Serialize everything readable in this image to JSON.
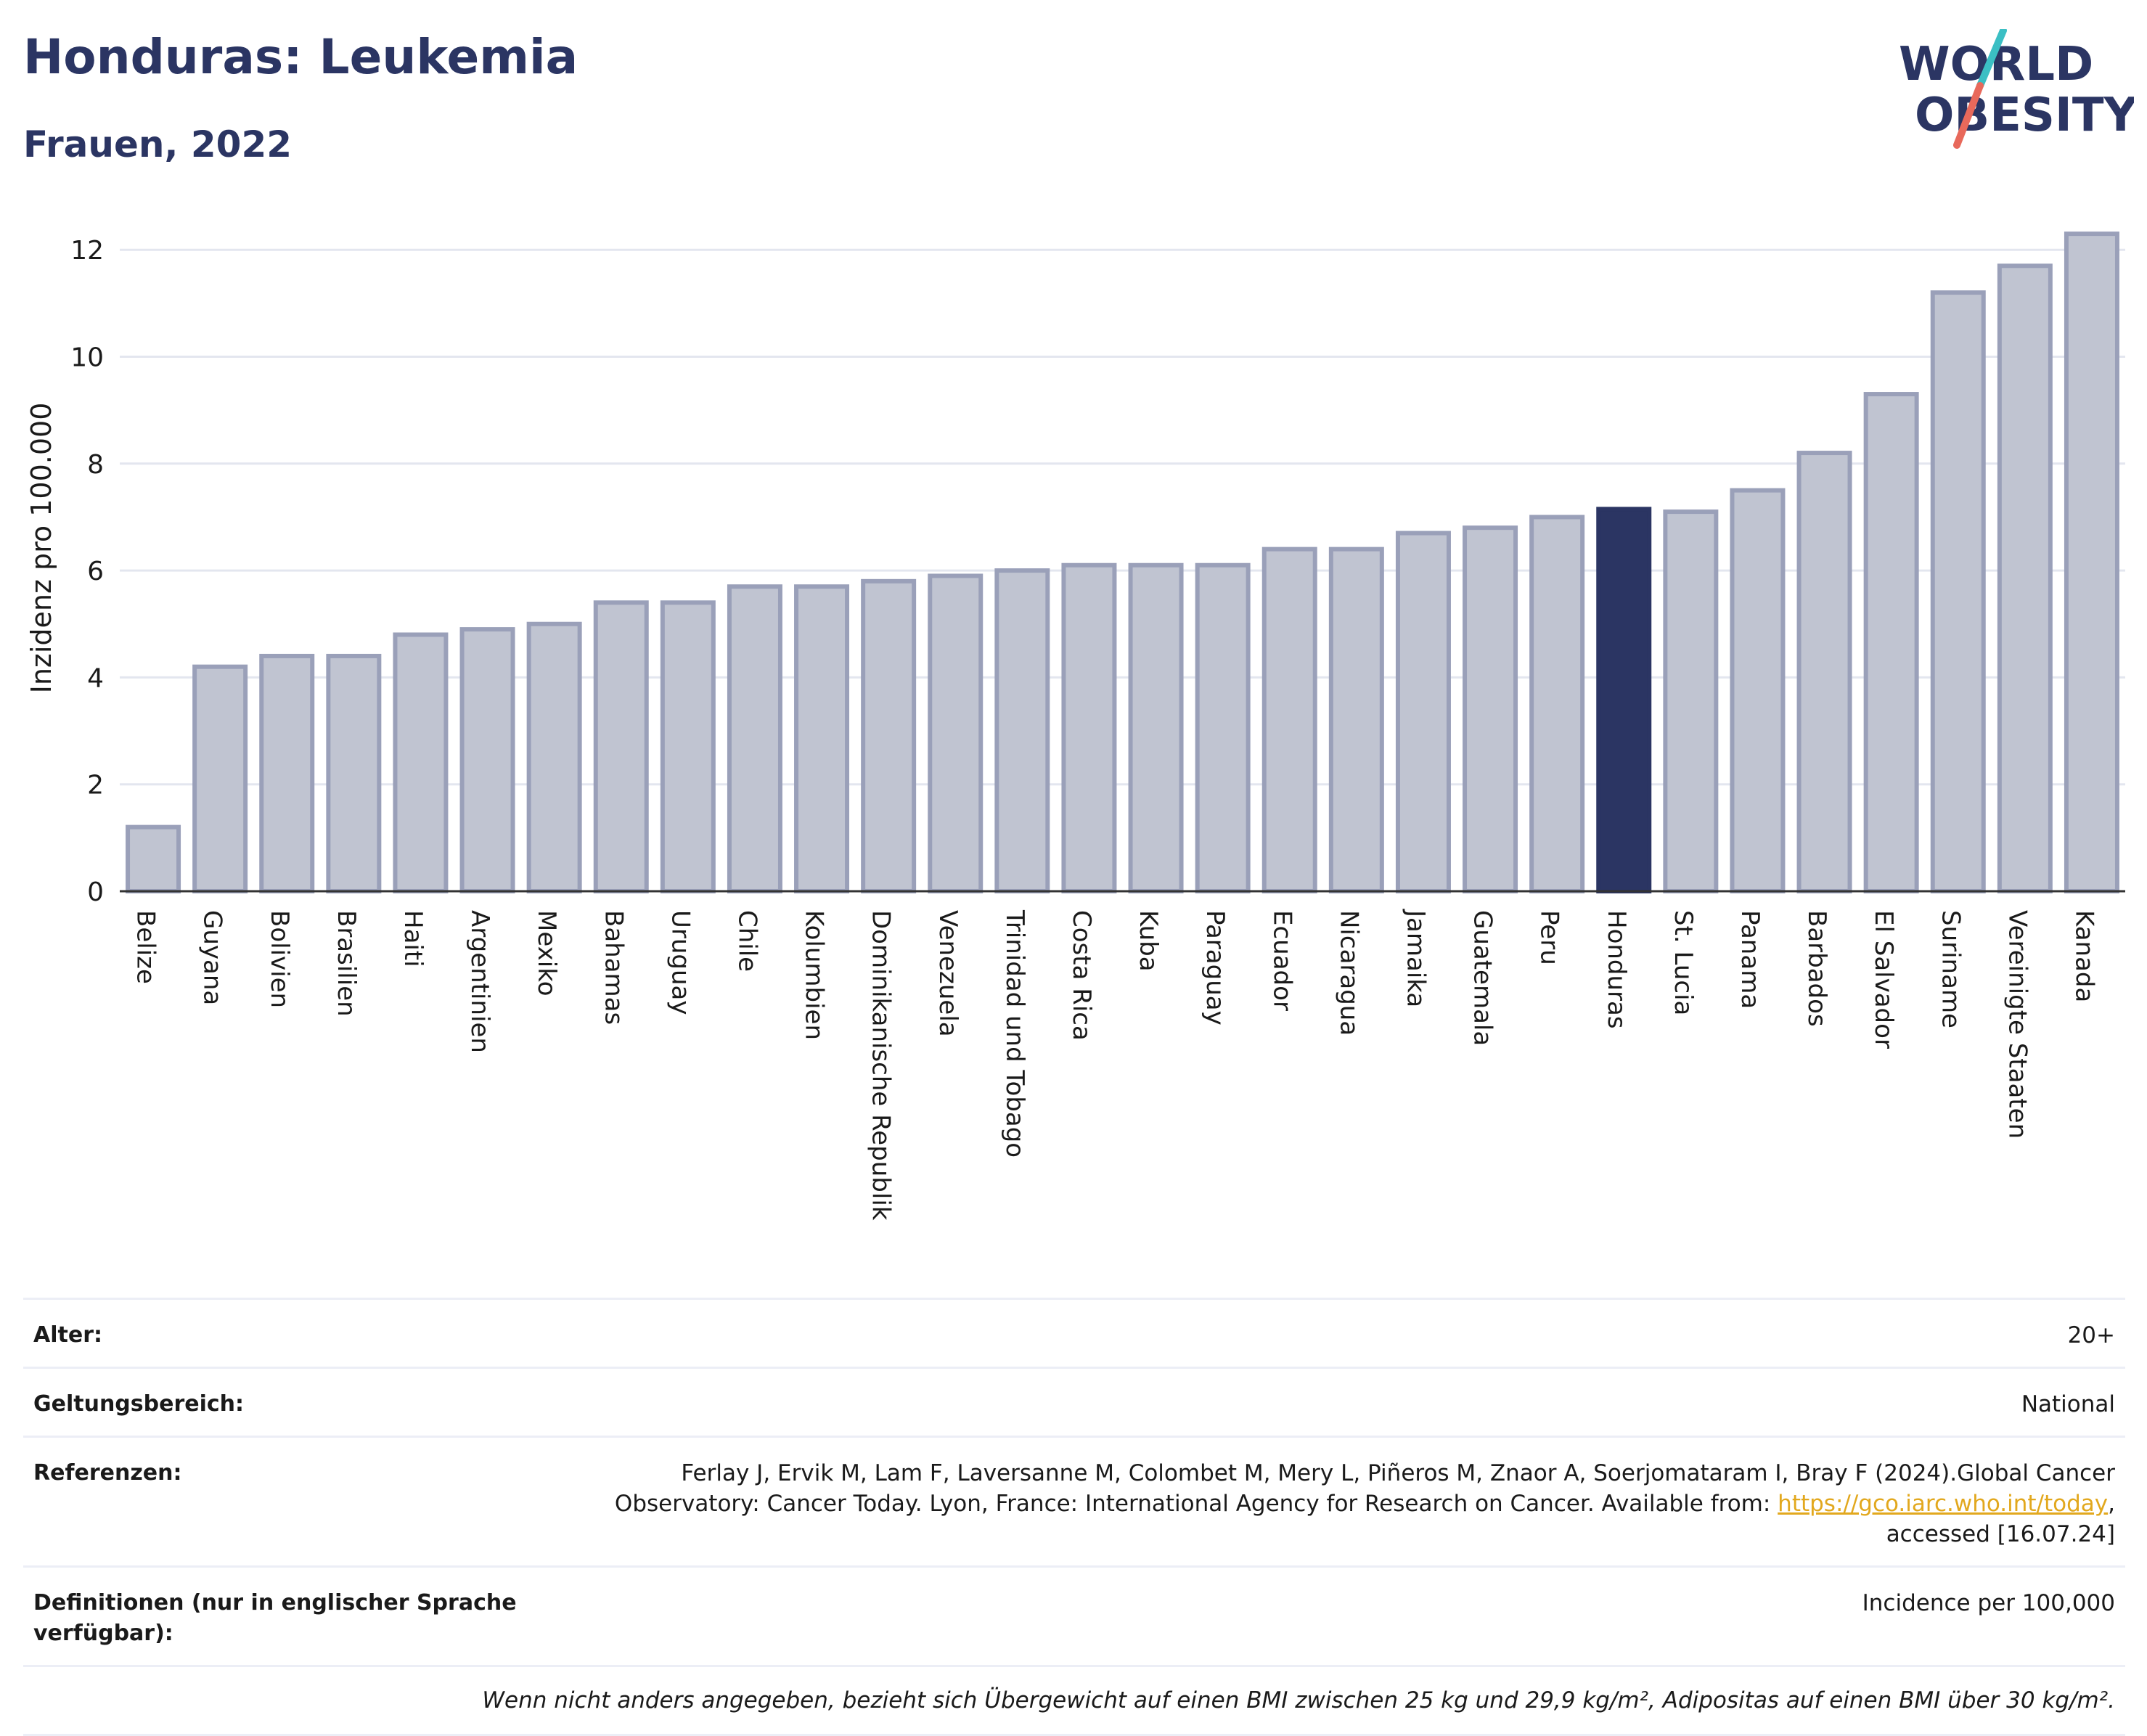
{
  "header": {
    "title": "Honduras: Leukemia",
    "subtitle": "Frauen, 2022",
    "logo_line1": "WORLD",
    "logo_line2": "OBESITY"
  },
  "colors": {
    "navy": "#2b3563",
    "bar_fill": "#c0c4d1",
    "bar_stroke": "#9aa0b9",
    "highlight": "#2b3563",
    "logo_teal": "#3bbfc4",
    "logo_red": "#e8695b",
    "link": "#e2a81e"
  },
  "chart_data": {
    "type": "bar",
    "ylabel": "Inzidenz pro 100.000",
    "ylim": [
      0,
      12.6
    ],
    "yticks": [
      0,
      2,
      4,
      6,
      8,
      10,
      12
    ],
    "grid": true,
    "highlight_category": "Honduras",
    "categories": [
      "Belize",
      "Guyana",
      "Bolivien",
      "Brasilien",
      "Haiti",
      "Argentinien",
      "Mexiko",
      "Bahamas",
      "Uruguay",
      "Chile",
      "Kolumbien",
      "Dominikanische Republik",
      "Venezuela",
      "Trinidad und Tobago",
      "Costa Rica",
      "Kuba",
      "Paraguay",
      "Ecuador",
      "Nicaragua",
      "Jamaika",
      "Guatemala",
      "Peru",
      "Honduras",
      "St. Lucia",
      "Panama",
      "Barbados",
      "El Salvador",
      "Suriname",
      "Vereinigte Staaten",
      "Kanada"
    ],
    "values": [
      1.2,
      4.2,
      4.4,
      4.4,
      4.8,
      4.9,
      5.0,
      5.4,
      5.4,
      5.7,
      5.7,
      5.8,
      5.9,
      6.0,
      6.1,
      6.1,
      6.1,
      6.4,
      6.4,
      6.7,
      6.8,
      7.0,
      7.15,
      7.1,
      7.5,
      8.2,
      9.3,
      11.2,
      11.7,
      12.3
    ]
  },
  "meta": {
    "age_label": "Alter:",
    "age_value": "20+",
    "scope_label": "Geltungsbereich:",
    "scope_value": "National",
    "refs_label": "Referenzen:",
    "refs_text_1": "Ferlay J, Ervik M, Lam F, Laversanne M, Colombet M, Mery L, Piñeros M, Znaor A, Soerjomataram I, Bray F (2024).Global Cancer Observatory: Cancer Today. Lyon, France: International Agency for Research on Cancer. Available from: ",
    "refs_link": "https://gco.iarc.who.int/today",
    "refs_text_2": ", accessed [16.07.24]",
    "defs_label": "Definitionen (nur in englischer Sprache verfügbar):",
    "defs_value": "Incidence per 100,000",
    "footnote": "Wenn nicht anders angegeben, bezieht sich Übergewicht auf einen BMI zwischen 25 kg und 29,9 kg/m², Adipositas auf einen BMI über 30 kg/m²."
  }
}
